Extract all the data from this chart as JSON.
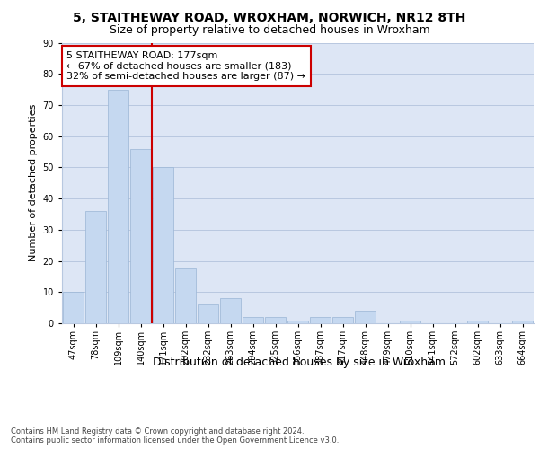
{
  "title1": "5, STAITHEWAY ROAD, WROXHAM, NORWICH, NR12 8TH",
  "title2": "Size of property relative to detached houses in Wroxham",
  "xlabel": "Distribution of detached houses by size in Wroxham",
  "ylabel": "Number of detached properties",
  "footnote": "Contains HM Land Registry data © Crown copyright and database right 2024.\nContains public sector information licensed under the Open Government Licence v3.0.",
  "bar_labels": [
    "47sqm",
    "78sqm",
    "109sqm",
    "140sqm",
    "171sqm",
    "202sqm",
    "232sqm",
    "263sqm",
    "294sqm",
    "325sqm",
    "356sqm",
    "387sqm",
    "417sqm",
    "448sqm",
    "479sqm",
    "510sqm",
    "541sqm",
    "572sqm",
    "602sqm",
    "633sqm",
    "664sqm"
  ],
  "bar_values": [
    10,
    36,
    75,
    56,
    50,
    18,
    6,
    8,
    2,
    2,
    1,
    2,
    2,
    4,
    0,
    1,
    0,
    0,
    1,
    0,
    1
  ],
  "bar_color": "#c5d8f0",
  "bar_edge_color": "#9ab5d5",
  "vline_color": "#cc0000",
  "annotation_text": "5 STAITHEWAY ROAD: 177sqm\n← 67% of detached houses are smaller (183)\n32% of semi-detached houses are larger (87) →",
  "annotation_box_color": "#ffffff",
  "annotation_box_edge": "#cc0000",
  "ylim": [
    0,
    90
  ],
  "yticks": [
    0,
    10,
    20,
    30,
    40,
    50,
    60,
    70,
    80,
    90
  ],
  "bg_color": "#dde6f5",
  "grid_color": "#b8c8e0",
  "title1_fontsize": 10,
  "title2_fontsize": 9,
  "xlabel_fontsize": 9,
  "ylabel_fontsize": 8,
  "tick_fontsize": 7,
  "annot_fontsize": 8
}
